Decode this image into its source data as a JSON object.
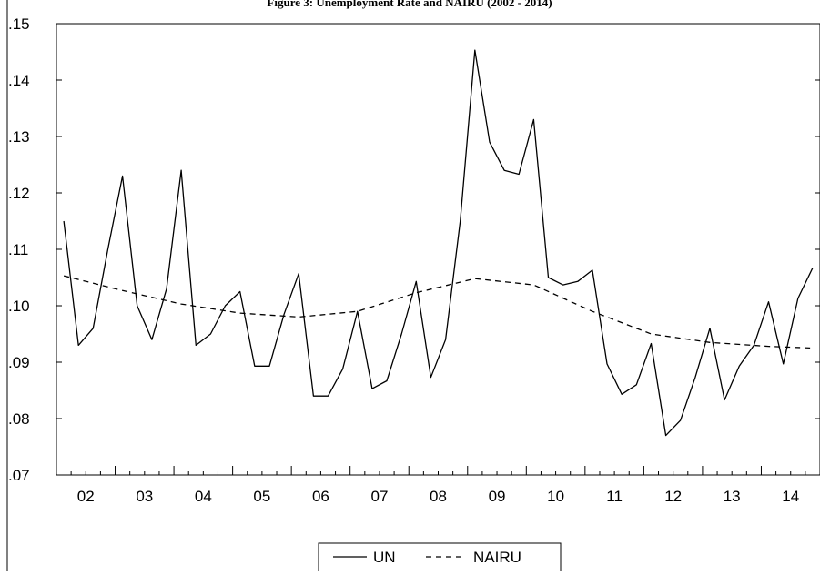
{
  "figure_title": "Figure 3: Unemployment Rate and NAIRU (2002 - 2014)",
  "chart_data": {
    "type": "line",
    "title": "Figure 3: Unemployment Rate and NAIRU (2002 - 2014)",
    "xlabel": "",
    "ylabel": "",
    "x_tick_labels": [
      "02",
      "03",
      "04",
      "05",
      "06",
      "07",
      "08",
      "09",
      "10",
      "11",
      "12",
      "13",
      "14"
    ],
    "y_tick_labels": [
      ".07",
      ".08",
      ".09",
      ".10",
      ".11",
      ".12",
      ".13",
      ".14",
      ".15"
    ],
    "ylim": [
      0.07,
      0.15
    ],
    "xlim": [
      2002.0,
      2015.0
    ],
    "grid": false,
    "legend": {
      "placement": "bottom-center",
      "entries": [
        "UN",
        "NAIRU"
      ]
    },
    "series": [
      {
        "name": "UN",
        "style": "solid",
        "x": [
          2002.125,
          2002.375,
          2002.625,
          2002.875,
          2003.125,
          2003.375,
          2003.625,
          2003.875,
          2004.125,
          2004.375,
          2004.625,
          2004.875,
          2005.125,
          2005.375,
          2005.625,
          2005.875,
          2006.125,
          2006.375,
          2006.625,
          2006.875,
          2007.125,
          2007.375,
          2007.625,
          2007.875,
          2008.125,
          2008.375,
          2008.625,
          2008.875,
          2009.125,
          2009.375,
          2009.625,
          2009.875,
          2010.125,
          2010.375,
          2010.625,
          2010.875,
          2011.125,
          2011.375,
          2011.625,
          2011.875,
          2012.125,
          2012.375,
          2012.625,
          2012.875,
          2013.125,
          2013.375,
          2013.625,
          2013.875,
          2014.125,
          2014.375,
          2014.625,
          2014.875
        ],
        "values": [
          0.115,
          0.093,
          0.096,
          0.11,
          0.123,
          0.1,
          0.094,
          0.103,
          0.124,
          0.093,
          0.095,
          0.1,
          0.1025,
          0.0893,
          0.0893,
          0.0985,
          0.1057,
          0.084,
          0.084,
          0.0888,
          0.099,
          0.0853,
          0.0867,
          0.095,
          0.1043,
          0.0873,
          0.094,
          0.115,
          0.1453,
          0.129,
          0.124,
          0.1233,
          0.133,
          0.105,
          0.1037,
          0.1043,
          0.1063,
          0.0897,
          0.0843,
          0.086,
          0.0933,
          0.077,
          0.0797,
          0.0873,
          0.096,
          0.0833,
          0.0893,
          0.093,
          0.1007,
          0.0897,
          0.1013,
          0.1067
        ]
      },
      {
        "name": "NAIRU",
        "style": "dashed",
        "x": [
          2002.125,
          2003.125,
          2004.125,
          2005.125,
          2006.125,
          2007.125,
          2008.125,
          2009.125,
          2010.125,
          2011.125,
          2012.125,
          2013.125,
          2014.125,
          2014.875
        ],
        "values": [
          0.1053,
          0.1027,
          0.1003,
          0.0987,
          0.098,
          0.099,
          0.1023,
          0.1048,
          0.1037,
          0.099,
          0.095,
          0.0935,
          0.0928,
          0.0925
        ]
      }
    ]
  }
}
